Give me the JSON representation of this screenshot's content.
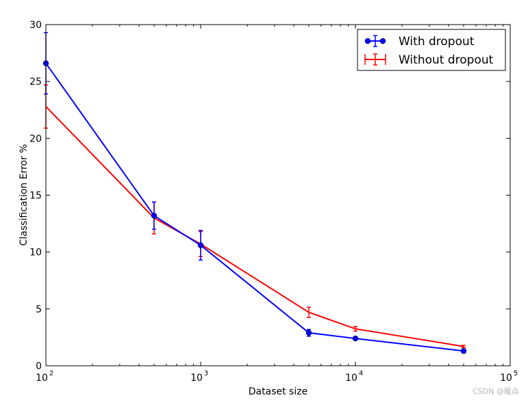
{
  "chart_data": {
    "type": "line",
    "xlabel": "Dataset size",
    "ylabel": "Classification Error %",
    "xscale": "log",
    "xlim": [
      100,
      100000
    ],
    "ylim": [
      0,
      30
    ],
    "grid": false,
    "legend_position": "top-right",
    "xticks": [
      {
        "base": "10",
        "exp": "2",
        "value": 100
      },
      {
        "base": "10",
        "exp": "3",
        "value": 1000
      },
      {
        "base": "10",
        "exp": "4",
        "value": 10000
      },
      {
        "base": "10",
        "exp": "5",
        "value": 100000
      }
    ],
    "yticks": [
      "0",
      "5",
      "10",
      "15",
      "20",
      "25",
      "30"
    ],
    "series": [
      {
        "name": "With dropout",
        "color": "#0000ff",
        "marker": "circle",
        "x": [
          100,
          500,
          1000,
          5000,
          10000,
          50000
        ],
        "y": [
          26.6,
          13.2,
          10.6,
          2.9,
          2.4,
          1.3
        ],
        "err": [
          2.7,
          1.2,
          1.3,
          0.3,
          0.15,
          0.15
        ]
      },
      {
        "name": "Without dropout",
        "color": "#ff0000",
        "marker": "none",
        "x": [
          100,
          500,
          1000,
          5000,
          10000,
          50000
        ],
        "y": [
          22.8,
          13.0,
          10.7,
          4.7,
          3.25,
          1.7
        ],
        "err": [
          1.9,
          1.4,
          1.1,
          0.45,
          0.2,
          0.1
        ]
      }
    ]
  },
  "watermark": "CSDN @暖焱"
}
